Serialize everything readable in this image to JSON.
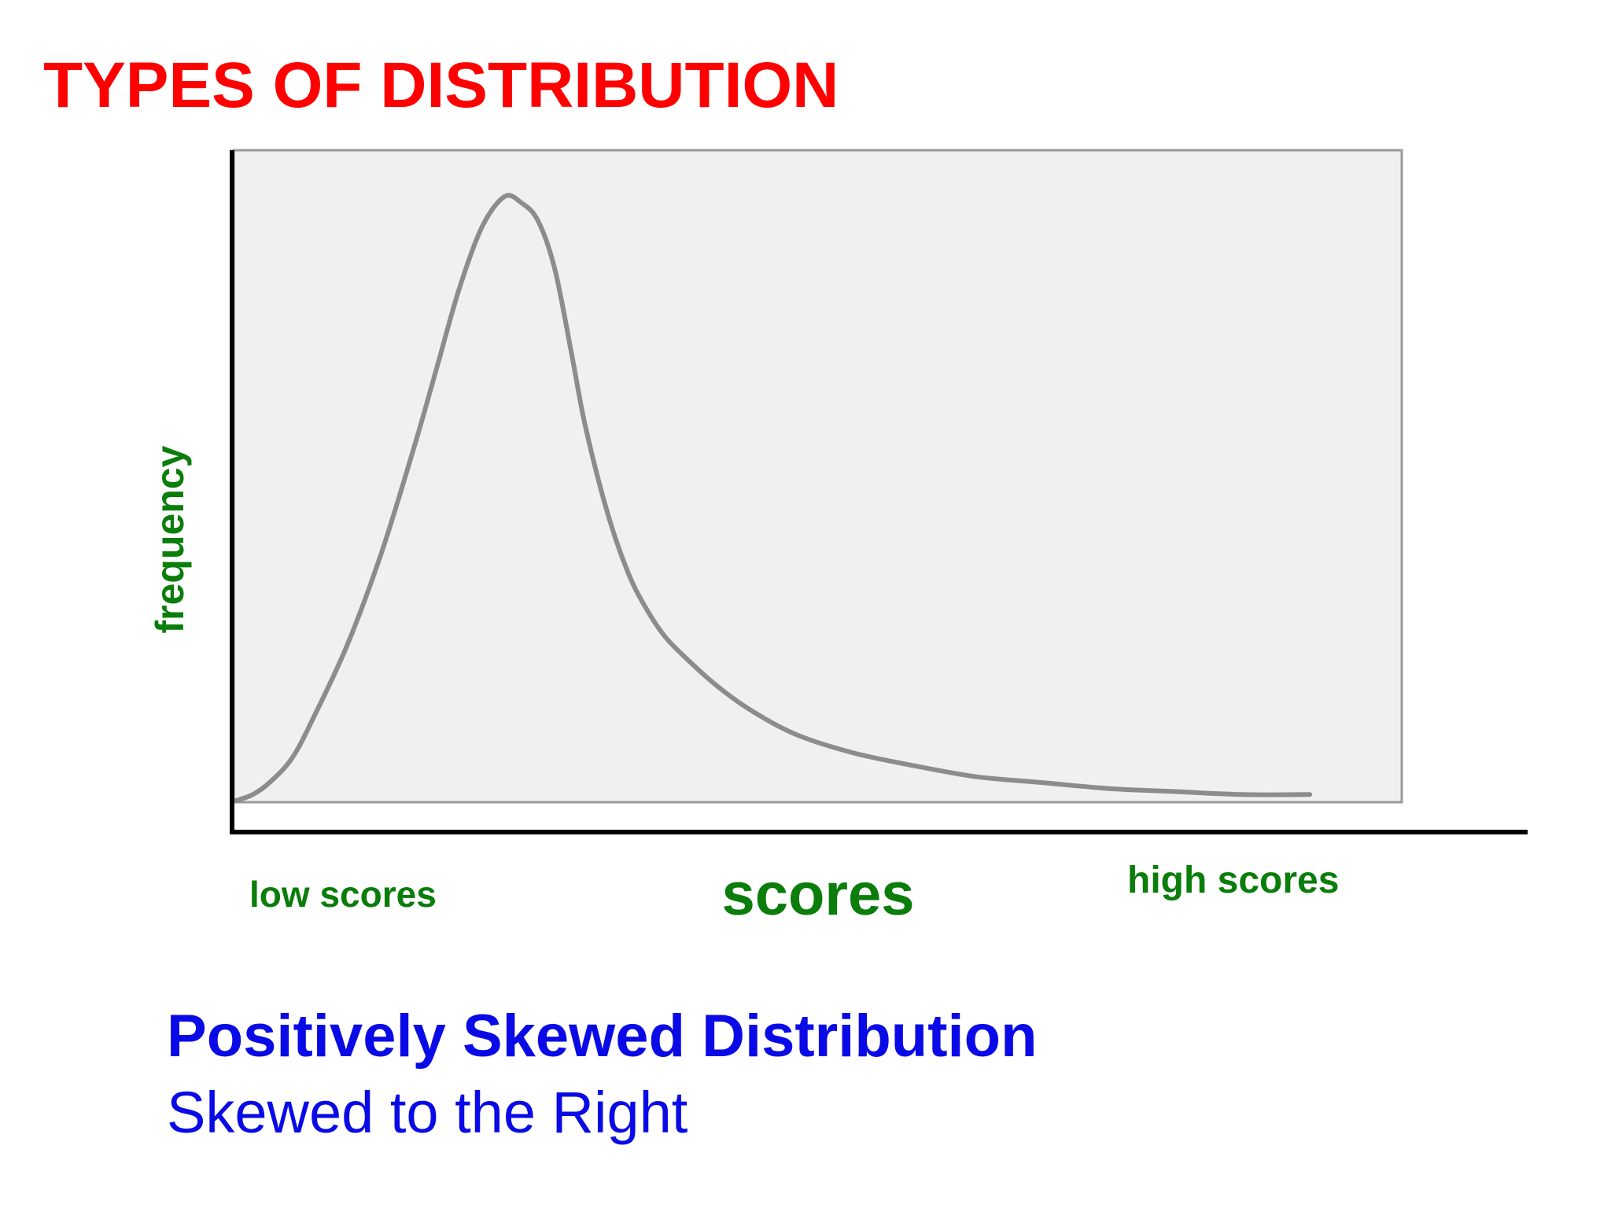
{
  "slide": {
    "title": "TYPES OF DISTRIBUTION",
    "subtitle": "Positively Skewed Distribution",
    "subtitle_secondary": "Skewed to the Right"
  },
  "colors": {
    "title": "#ff0000",
    "axis_labels": "#0a7d0a",
    "subtitle": "#0a0ae6",
    "plot_background": "#f0f0f0",
    "curve": "#8c8c8c",
    "axes": "#000000"
  },
  "chart_data": {
    "type": "line",
    "title": "",
    "xlabel": "scores",
    "ylabel": "frequency",
    "x_low_label": "low scores",
    "x_high_label": "high scores",
    "grid": false,
    "xlim": [
      0,
      100
    ],
    "ylim": [
      0,
      100
    ],
    "series": [
      {
        "x": [
          0,
          1.5,
          3,
          5,
          7,
          10,
          13,
          16,
          18,
          20,
          22,
          24,
          25.5,
          27,
          28.5,
          30,
          31,
          32,
          33,
          34,
          35,
          36,
          38,
          40,
          43,
          46,
          50,
          55,
          60,
          66,
          72,
          78,
          84,
          90,
          96
        ],
        "y": [
          0,
          1,
          3,
          7,
          14,
          26,
          41,
          59,
          72,
          85,
          95,
          100,
          99,
          96,
          88,
          74,
          64,
          56,
          49,
          43,
          38,
          34,
          28,
          24,
          19,
          15,
          11,
          8,
          6,
          4,
          3,
          2,
          1.5,
          1,
          1
        ]
      }
    ]
  }
}
